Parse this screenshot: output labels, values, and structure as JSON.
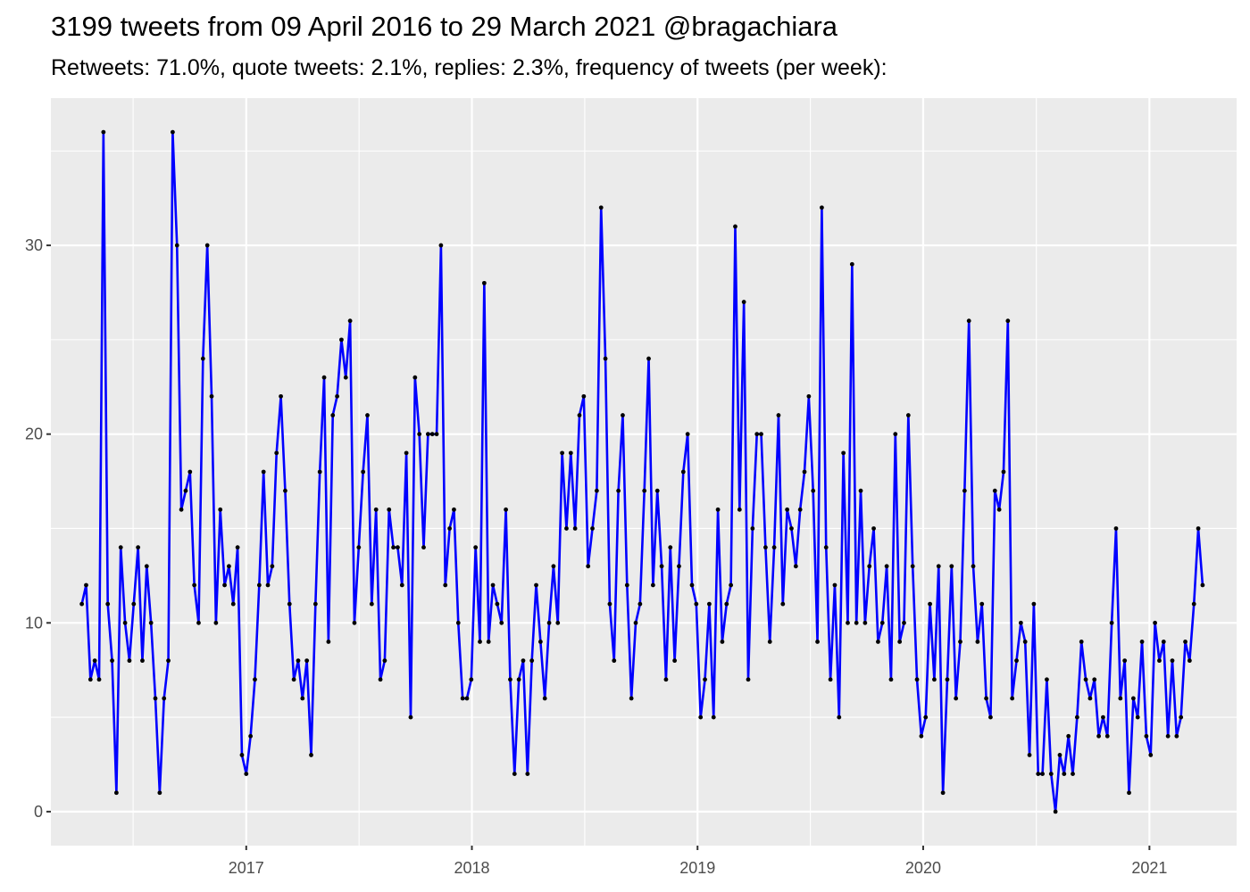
{
  "chart_data": {
    "type": "line",
    "title": "3199 tweets from 09 April 2016 to 29 March 2021 @bragachiara",
    "subtitle": "Retweets: 71.0%, quote tweets: 2.1%, replies: 2.3%, frequency of tweets (per week):",
    "xlabel": "",
    "ylabel": "",
    "x_axis": {
      "type": "date",
      "range": [
        "2016-02-20",
        "2021-05-22"
      ],
      "ticks": [
        "2017-01-01",
        "2018-01-01",
        "2019-01-01",
        "2020-01-01",
        "2021-01-01"
      ],
      "tick_labels": [
        "2017",
        "2018",
        "2019",
        "2020",
        "2021"
      ]
    },
    "y_axis": {
      "range": [
        -1.8,
        37.8
      ],
      "ticks": [
        0,
        10,
        20,
        30
      ],
      "tick_labels": [
        "0",
        "10",
        "20",
        "30"
      ]
    },
    "grid": true,
    "colors": {
      "line": "#0000ff",
      "point": "#000000",
      "panel": "#ebebeb",
      "grid": "#ffffff"
    },
    "series": [
      {
        "start": "2016-04-10",
        "interval_days": 7,
        "values": [
          11,
          12,
          7,
          8,
          7,
          36,
          11,
          8,
          1,
          14,
          10,
          8,
          11,
          14,
          8,
          13,
          10,
          6,
          1,
          6,
          8,
          36,
          30,
          16,
          17,
          18,
          12,
          10,
          24,
          30,
          22,
          10,
          16,
          12,
          13,
          11,
          14,
          3,
          2,
          4,
          7,
          12,
          18,
          12,
          13,
          19,
          22,
          17,
          11,
          7,
          8,
          6,
          8,
          3,
          11,
          18,
          23,
          9,
          21,
          22,
          25,
          23,
          26,
          10,
          14,
          18,
          21,
          11,
          16,
          7,
          8,
          16,
          14,
          14,
          12,
          19,
          5,
          23,
          20,
          14,
          20,
          20,
          20,
          30,
          12,
          15,
          16,
          10,
          6,
          6,
          7,
          14,
          9,
          28,
          9,
          12,
          11,
          10,
          16,
          7,
          2,
          7,
          8,
          2,
          8,
          12,
          9,
          6,
          10,
          13,
          10,
          19,
          15,
          19,
          15,
          21,
          22,
          13,
          15,
          17,
          32,
          24,
          11,
          8,
          17,
          21,
          12,
          6,
          10,
          11,
          17,
          24,
          12,
          17,
          13,
          7,
          14,
          8,
          13,
          18,
          20,
          12,
          11,
          5,
          7,
          11,
          5,
          16,
          9,
          11,
          12,
          31,
          16,
          27,
          7,
          15,
          20,
          20,
          14,
          9,
          14,
          21,
          11,
          16,
          15,
          13,
          16,
          18,
          22,
          17,
          9,
          32,
          14,
          7,
          12,
          5,
          19,
          10,
          29,
          10,
          17,
          10,
          13,
          15,
          9,
          10,
          13,
          7,
          20,
          9,
          10,
          21,
          13,
          7,
          4,
          5,
          11,
          7,
          13,
          1,
          7,
          13,
          6,
          9,
          17,
          26,
          13,
          9,
          11,
          6,
          5,
          17,
          16,
          18,
          26,
          6,
          8,
          10,
          9,
          3,
          11,
          2,
          2,
          7,
          2,
          0,
          3,
          2,
          4,
          2,
          5,
          9,
          7,
          6,
          7,
          4,
          5,
          4,
          10,
          15,
          6,
          8,
          1,
          6,
          5,
          9,
          4,
          3,
          10,
          8,
          9,
          4,
          8,
          4,
          5,
          9,
          8,
          11,
          15,
          12
        ]
      }
    ]
  }
}
